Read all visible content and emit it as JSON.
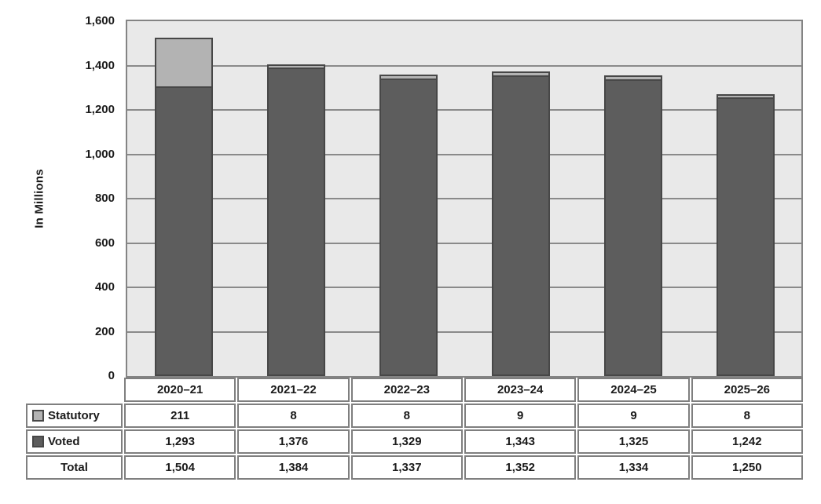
{
  "chart_data": {
    "type": "bar",
    "stacked": true,
    "title": "",
    "xlabel": "",
    "ylabel": "In Millions",
    "ylim": [
      0,
      1600
    ],
    "ytick_step": 200,
    "yticks": [
      {
        "value": 0,
        "label": "0"
      },
      {
        "value": 200,
        "label": "200"
      },
      {
        "value": 400,
        "label": "400"
      },
      {
        "value": 600,
        "label": "600"
      },
      {
        "value": 800,
        "label": "800"
      },
      {
        "value": 1000,
        "label": "1,000"
      },
      {
        "value": 1200,
        "label": "1,200"
      },
      {
        "value": 1400,
        "label": "1,400"
      },
      {
        "value": 1600,
        "label": "1,600"
      }
    ],
    "grid": true,
    "legend_position": "table-left",
    "categories": [
      "2020–21",
      "2021–22",
      "2022–23",
      "2023–24",
      "2024–25",
      "2025–26"
    ],
    "series": [
      {
        "name": "Voted",
        "values": [
          1293,
          1376,
          1329,
          1343,
          1325,
          1242
        ],
        "color": "#5d5d5d"
      },
      {
        "name": "Statutory",
        "values": [
          211,
          8,
          8,
          9,
          9,
          8
        ],
        "color": "#b3b3b3"
      }
    ],
    "totals": [
      1504,
      1384,
      1337,
      1352,
      1334,
      1250
    ]
  },
  "table": {
    "year_headers": [
      "2020–21",
      "2021–22",
      "2022–23",
      "2023–24",
      "2024–25",
      "2025–26"
    ],
    "rows": [
      {
        "label": "Statutory",
        "swatch_color": "#b3b3b3",
        "values": [
          "211",
          "8",
          "8",
          "9",
          "9",
          "8"
        ]
      },
      {
        "label": "Voted",
        "swatch_color": "#5d5d5d",
        "values": [
          "1,293",
          "1,376",
          "1,329",
          "1,343",
          "1,325",
          "1,242"
        ]
      },
      {
        "label": "Total",
        "swatch_color": null,
        "values": [
          "1,504",
          "1,384",
          "1,337",
          "1,352",
          "1,334",
          "1,250"
        ]
      }
    ]
  },
  "colors": {
    "plot_background": "#e9e9e9",
    "gridline": "#8a8a8a",
    "voted": "#5d5d5d",
    "statutory": "#b3b3b3",
    "segment_border": "#474747",
    "table_border": "#7f7f7f",
    "text": "#1a1a1a"
  }
}
